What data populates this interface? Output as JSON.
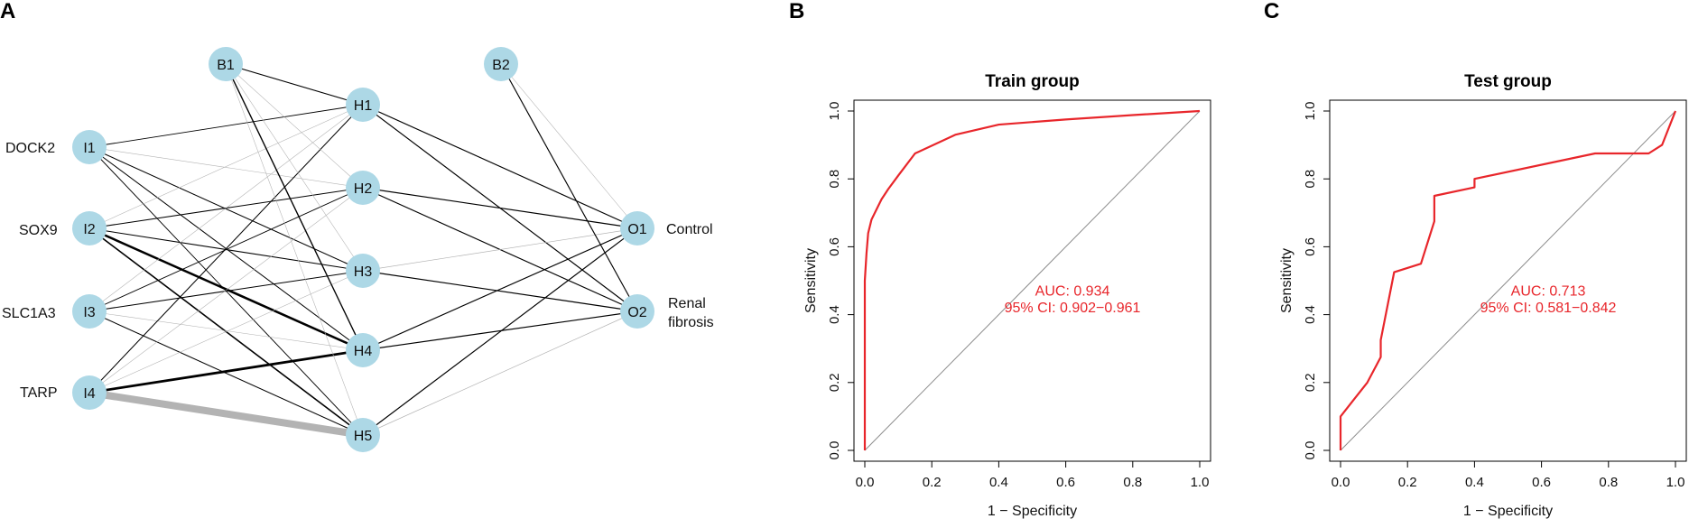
{
  "panels": {
    "a": "A",
    "b": "B",
    "c": "C"
  },
  "network": {
    "input_features": [
      "DOCK2",
      "SOX9",
      "SLC1A3",
      "TARP"
    ],
    "output_classes": [
      "Control",
      "Renal\nfibrosis"
    ],
    "nodes": {
      "input": [
        "I1",
        "I2",
        "I3",
        "I4"
      ],
      "hidden": [
        "H1",
        "H2",
        "H3",
        "H4",
        "H5"
      ],
      "output": [
        "O1",
        "O2"
      ],
      "bias_hidden": "B1",
      "bias_output": "B2"
    },
    "node_color": "#add8e6",
    "positive_edge_color": "#000000",
    "negative_edge_color": "#b3b3b3",
    "edges": [
      {
        "from": "I1",
        "to": "H1",
        "weight": 0.8,
        "sign": "pos"
      },
      {
        "from": "I1",
        "to": "H2",
        "weight": 0.5,
        "sign": "neg"
      },
      {
        "from": "I1",
        "to": "H3",
        "weight": 0.9,
        "sign": "pos"
      },
      {
        "from": "I1",
        "to": "H4",
        "weight": 0.9,
        "sign": "pos"
      },
      {
        "from": "I1",
        "to": "H5",
        "weight": 0.8,
        "sign": "pos"
      },
      {
        "from": "I2",
        "to": "H1",
        "weight": 0.5,
        "sign": "neg"
      },
      {
        "from": "I2",
        "to": "H2",
        "weight": 0.9,
        "sign": "pos"
      },
      {
        "from": "I2",
        "to": "H3",
        "weight": 0.9,
        "sign": "pos"
      },
      {
        "from": "I2",
        "to": "H4",
        "weight": 2.2,
        "sign": "pos"
      },
      {
        "from": "I2",
        "to": "H5",
        "weight": 1.4,
        "sign": "pos"
      },
      {
        "from": "I3",
        "to": "H1",
        "weight": 0.5,
        "sign": "neg"
      },
      {
        "from": "I3",
        "to": "H2",
        "weight": 0.8,
        "sign": "pos"
      },
      {
        "from": "I3",
        "to": "H3",
        "weight": 0.9,
        "sign": "pos"
      },
      {
        "from": "I3",
        "to": "H4",
        "weight": 0.5,
        "sign": "neg"
      },
      {
        "from": "I3",
        "to": "H5",
        "weight": 0.9,
        "sign": "pos"
      },
      {
        "from": "I4",
        "to": "H1",
        "weight": 0.9,
        "sign": "pos"
      },
      {
        "from": "I4",
        "to": "H2",
        "weight": 0.5,
        "sign": "neg"
      },
      {
        "from": "I4",
        "to": "H3",
        "weight": 0.5,
        "sign": "neg"
      },
      {
        "from": "I4",
        "to": "H4",
        "weight": 2.4,
        "sign": "pos"
      },
      {
        "from": "I4",
        "to": "H5",
        "weight": 7.0,
        "sign": "neg"
      },
      {
        "from": "B1",
        "to": "H1",
        "weight": 0.9,
        "sign": "pos"
      },
      {
        "from": "B1",
        "to": "H2",
        "weight": 0.5,
        "sign": "neg"
      },
      {
        "from": "B1",
        "to": "H3",
        "weight": 0.5,
        "sign": "neg"
      },
      {
        "from": "B1",
        "to": "H4",
        "weight": 1.2,
        "sign": "pos"
      },
      {
        "from": "B1",
        "to": "H5",
        "weight": 0.5,
        "sign": "neg"
      },
      {
        "from": "H1",
        "to": "O1",
        "weight": 1.0,
        "sign": "pos"
      },
      {
        "from": "H1",
        "to": "O2",
        "weight": 1.0,
        "sign": "pos"
      },
      {
        "from": "H2",
        "to": "O1",
        "weight": 1.0,
        "sign": "pos"
      },
      {
        "from": "H2",
        "to": "O2",
        "weight": 1.0,
        "sign": "pos"
      },
      {
        "from": "H3",
        "to": "O1",
        "weight": 0.6,
        "sign": "neg"
      },
      {
        "from": "H3",
        "to": "O2",
        "weight": 1.0,
        "sign": "pos"
      },
      {
        "from": "H4",
        "to": "O1",
        "weight": 1.0,
        "sign": "pos"
      },
      {
        "from": "H4",
        "to": "O2",
        "weight": 1.0,
        "sign": "pos"
      },
      {
        "from": "H5",
        "to": "O1",
        "weight": 1.0,
        "sign": "pos"
      },
      {
        "from": "H5",
        "to": "O2",
        "weight": 0.6,
        "sign": "neg"
      },
      {
        "from": "B2",
        "to": "O1",
        "weight": 0.5,
        "sign": "neg"
      },
      {
        "from": "B2",
        "to": "O2",
        "weight": 1.0,
        "sign": "pos"
      }
    ]
  },
  "chart_data": [
    {
      "type": "line",
      "title": "Train group",
      "xlabel": "1 − Specificity",
      "ylabel": "Sensitivity",
      "xlim": [
        0,
        1
      ],
      "ylim": [
        0,
        1
      ],
      "xticks": [
        "0.0",
        "0.2",
        "0.4",
        "0.6",
        "0.8",
        "1.0"
      ],
      "yticks": [
        "0.0",
        "0.2",
        "0.4",
        "0.6",
        "0.8",
        "1.0"
      ],
      "diagonal": true,
      "curve_color": "#e8262b",
      "series": [
        {
          "name": "ROC",
          "x": [
            0,
            0,
            0.005,
            0.01,
            0.02,
            0.035,
            0.05,
            0.07,
            0.1,
            0.15,
            0.27,
            0.4,
            0.6,
            0.8,
            1.0
          ],
          "y": [
            0,
            0.5,
            0.58,
            0.64,
            0.68,
            0.71,
            0.74,
            0.77,
            0.81,
            0.875,
            0.93,
            0.96,
            0.975,
            0.988,
            1.0
          ]
        }
      ],
      "annotation": {
        "auc": "AUC: 0.934",
        "ci": "95% CI: 0.902−0.961"
      }
    },
    {
      "type": "line",
      "title": "Test group",
      "xlabel": "1 − Specificity",
      "ylabel": "Sensitivity",
      "xlim": [
        0,
        1
      ],
      "ylim": [
        0,
        1
      ],
      "xticks": [
        "0.0",
        "0.2",
        "0.4",
        "0.6",
        "0.8",
        "1.0"
      ],
      "yticks": [
        "0.0",
        "0.2",
        "0.4",
        "0.6",
        "0.8",
        "1.0"
      ],
      "diagonal": true,
      "curve_color": "#e8262b",
      "series": [
        {
          "name": "ROC",
          "x": [
            0,
            0,
            0.04,
            0.08,
            0.12,
            0.12,
            0.16,
            0.24,
            0.28,
            0.28,
            0.4,
            0.4,
            0.76,
            0.92,
            0.96,
            1.0
          ],
          "y": [
            0,
            0.1,
            0.15,
            0.2,
            0.275,
            0.325,
            0.525,
            0.55,
            0.675,
            0.75,
            0.775,
            0.8,
            0.875,
            0.875,
            0.9,
            1.0
          ]
        }
      ],
      "annotation": {
        "auc": "AUC: 0.713",
        "ci": "95% CI: 0.581−0.842"
      }
    }
  ]
}
